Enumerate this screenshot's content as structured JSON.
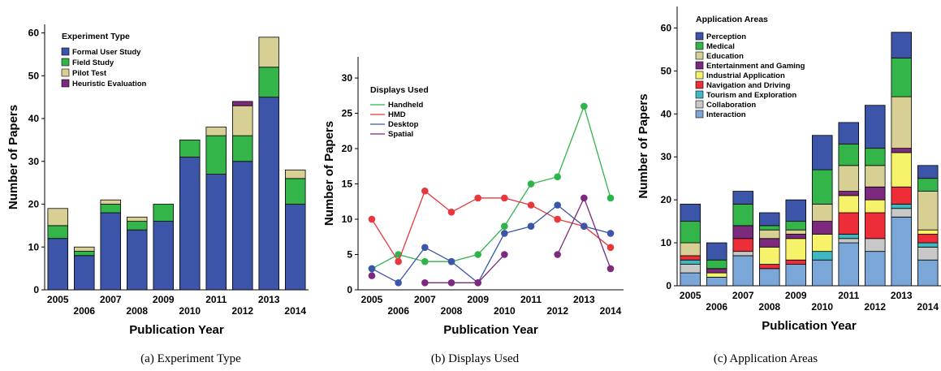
{
  "chart_data": [
    {
      "type": "bar",
      "stacked": true,
      "caption": "(a) Experiment Type",
      "xlabel": "Publication Year",
      "ylabel": "Number of Papers",
      "ylim": [
        0,
        62
      ],
      "yticks": [
        0,
        10,
        20,
        30,
        40,
        50,
        60
      ],
      "categories": [
        "2005",
        "2006",
        "2007",
        "2008",
        "2009",
        "2010",
        "2011",
        "2012",
        "2013",
        "2014"
      ],
      "legend": {
        "title": "Experiment Type",
        "position": "top-left"
      },
      "series": [
        {
          "name": "Formal User Study",
          "color": "#3d55a8",
          "values": [
            12,
            8,
            18,
            14,
            16,
            31,
            27,
            30,
            45,
            20
          ]
        },
        {
          "name": "Field Study",
          "color": "#33b54a",
          "values": [
            3,
            1,
            2,
            2,
            4,
            4,
            9,
            6,
            7,
            6
          ]
        },
        {
          "name": "Pilot Test",
          "color": "#d7cf93",
          "values": [
            4,
            1,
            1,
            1,
            0,
            0,
            2,
            7,
            7,
            2
          ]
        },
        {
          "name": "Heuristic Evaluation",
          "color": "#7b2a7d",
          "values": [
            0,
            0,
            0,
            0,
            0,
            0,
            0,
            1,
            0,
            0
          ]
        }
      ]
    },
    {
      "type": "line",
      "caption": "(b) Displays Used",
      "xlabel": "Publication Year",
      "ylabel": "Number of Papers",
      "ylim": [
        0,
        33
      ],
      "yticks": [
        0,
        5,
        10,
        15,
        20,
        25,
        30
      ],
      "x": [
        "2005",
        "2006",
        "2007",
        "2008",
        "2009",
        "2010",
        "2011",
        "2012",
        "2013",
        "2014"
      ],
      "legend": {
        "title": "Displays Used",
        "position": "top-left"
      },
      "series": [
        {
          "name": "Handheld",
          "color": "#2fb34a",
          "values": [
            3,
            5,
            4,
            4,
            5,
            9,
            15,
            16,
            26,
            13
          ]
        },
        {
          "name": "HMD",
          "color": "#e8383d",
          "values": [
            10,
            4,
            14,
            11,
            13,
            13,
            12,
            10,
            9,
            6
          ]
        },
        {
          "name": "Desktop",
          "color": "#3a56a8",
          "values": [
            3,
            1,
            6,
            4,
            1,
            8,
            9,
            12,
            9,
            8
          ]
        },
        {
          "name": "Spatial",
          "color": "#7b2a7d",
          "values": [
            2,
            null,
            1,
            1,
            1,
            5,
            null,
            5,
            13,
            3
          ]
        }
      ]
    },
    {
      "type": "bar",
      "stacked": true,
      "caption": "(c) Application Areas",
      "xlabel": "Publication Year",
      "ylabel": "Number of Papers",
      "ylim": [
        0,
        65
      ],
      "yticks": [
        0,
        10,
        20,
        30,
        40,
        50,
        60
      ],
      "categories": [
        "2005",
        "2006",
        "2007",
        "2008",
        "2009",
        "2010",
        "2011",
        "2012",
        "2013",
        "2014"
      ],
      "legend": {
        "title": "Application Areas",
        "position": "top-left"
      },
      "series": [
        {
          "name": "Interaction",
          "color": "#7aa6d8",
          "values": [
            3,
            2,
            7,
            4,
            5,
            6,
            10,
            8,
            16,
            6
          ]
        },
        {
          "name": "Collaboration",
          "color": "#c8c8c8",
          "values": [
            2,
            0,
            1,
            0,
            0,
            0,
            1,
            3,
            2,
            3
          ]
        },
        {
          "name": "Tourism and Exploration",
          "color": "#3fb8c3",
          "values": [
            1,
            0,
            0,
            0,
            0,
            2,
            1,
            0,
            1,
            1
          ]
        },
        {
          "name": "Navigation and Driving",
          "color": "#ed2e38",
          "values": [
            1,
            0,
            3,
            1,
            1,
            0,
            5,
            6,
            4,
            2
          ]
        },
        {
          "name": "Industrial Application",
          "color": "#f6f36a",
          "values": [
            0,
            1,
            0,
            4,
            5,
            4,
            4,
            3,
            8,
            1
          ]
        },
        {
          "name": "Entertainment and Gaming",
          "color": "#7b2a7d",
          "values": [
            0,
            1,
            3,
            2,
            1,
            3,
            1,
            3,
            1,
            0
          ]
        },
        {
          "name": "Education",
          "color": "#d7cf93",
          "values": [
            3,
            0,
            0,
            2,
            1,
            4,
            6,
            5,
            12,
            9
          ]
        },
        {
          "name": "Medical",
          "color": "#33b54a",
          "values": [
            5,
            2,
            5,
            1,
            2,
            8,
            5,
            4,
            9,
            3
          ]
        },
        {
          "name": "Perception",
          "color": "#3d55a8",
          "values": [
            4,
            4,
            3,
            3,
            5,
            8,
            5,
            10,
            6,
            3
          ]
        }
      ],
      "legend_order": [
        "Perception",
        "Medical",
        "Education",
        "Entertainment and Gaming",
        "Industrial Application",
        "Navigation and Driving",
        "Tourism and Exploration",
        "Collaboration",
        "Interaction"
      ]
    }
  ]
}
